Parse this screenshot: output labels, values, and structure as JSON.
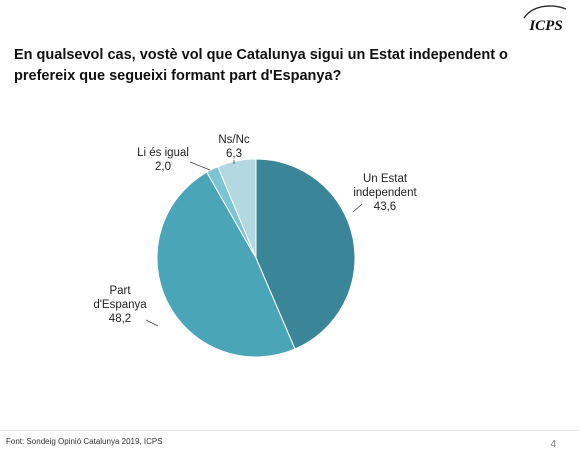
{
  "header": {
    "logo_text": "ICPS",
    "title": "En qualsevol cas, vostè vol que Catalunya sigui un Estat independent o prefereix que segueixi formant part d'Espanya?"
  },
  "chart_data": {
    "type": "pie",
    "title": "En qualsevol cas, vostè vol que Catalunya sigui un Estat independent o prefereix que segueixi formant part d'Espanya?",
    "slices": [
      {
        "label": [
          "Un Estat",
          "independent"
        ],
        "value": 43.6,
        "display": "43,6",
        "color": "#3a8597"
      },
      {
        "label": [
          "Part",
          "d'Espanya"
        ],
        "value": 48.2,
        "display": "48,2",
        "color": "#4aa5b8"
      },
      {
        "label": [
          "Li és igual"
        ],
        "value": 2.0,
        "display": "2,0",
        "color": "#7cc3d3"
      },
      {
        "label": [
          "Ns/Nc"
        ],
        "value": 6.3,
        "display": "6,3",
        "color": "#b3d8e2"
      }
    ],
    "start": "12 o'clock",
    "direction": "clockwise"
  },
  "footer": {
    "source": "Font: Sondeig Opinió Catalunya 2019, ICPS",
    "page_number": "4"
  }
}
